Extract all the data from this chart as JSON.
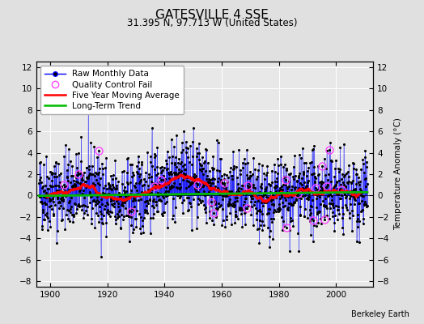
{
  "title": "GATESVILLE 4 SSE",
  "subtitle": "31.395 N, 97.713 W (United States)",
  "ylabel": "Temperature Anomaly (°C)",
  "credit": "Berkeley Earth",
  "xlim": [
    1895,
    2013
  ],
  "ylim": [
    -8.5,
    12.5
  ],
  "yticks": [
    -8,
    -6,
    -4,
    -2,
    0,
    2,
    4,
    6,
    8,
    10,
    12
  ],
  "xticks": [
    1900,
    1920,
    1940,
    1960,
    1980,
    2000
  ],
  "seed": 42,
  "start_year": 1896,
  "end_year": 2011,
  "background_color": "#e0e0e0",
  "plot_background": "#e8e8e8",
  "raw_line_color": "#0000ff",
  "raw_marker_color": "#000000",
  "qc_fail_color": "#ff44ff",
  "moving_avg_color": "#ff0000",
  "trend_color": "#00bb00",
  "legend_fontsize": 7.5,
  "title_fontsize": 11,
  "subtitle_fontsize": 8.5
}
